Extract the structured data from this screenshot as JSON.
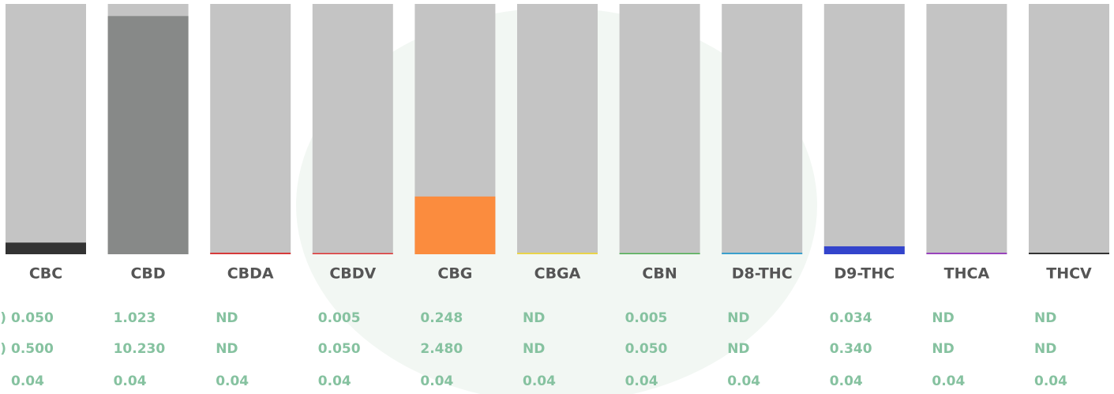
{
  "chart_data": {
    "type": "bar",
    "categories": [
      "CBC",
      "CBD",
      "CBDA",
      "CBDV",
      "CBG",
      "CBGA",
      "CBN",
      "D8-THC",
      "D9-THC",
      "THCA",
      "THCV"
    ],
    "values": [
      0.05,
      1.023,
      null,
      0.005,
      0.248,
      null,
      0.005,
      null,
      0.034,
      null,
      null
    ],
    "value_labels": [
      "0.050",
      "1.023",
      "ND",
      "0.005",
      "0.248",
      "ND",
      "0.005",
      "ND",
      "0.034",
      "ND",
      "ND"
    ],
    "colors": [
      "#333333",
      "#878988",
      "#d63a3a",
      "#e03030",
      "#fb8c3e",
      "#e8d44a",
      "#4caf50",
      "#3aa0cc",
      "#3344cc",
      "#9944bb",
      "#333333"
    ],
    "background_color": "#c4c4c4",
    "row_label": ")",
    "ylim": [
      0,
      1.075
    ]
  },
  "table": {
    "rows": [
      {
        "label": "g)",
        "cells": [
          "0.500",
          "10.230",
          "ND",
          "0.050",
          "2.480",
          "ND",
          "0.050",
          "ND",
          "0.340",
          "ND",
          "ND"
        ]
      },
      {
        "cells": [
          "0.04",
          "0.04",
          "0.04",
          "0.04",
          "0.04",
          "0.04",
          "0.04",
          "0.04",
          "0.04",
          "0.04",
          "0.04"
        ]
      }
    ]
  }
}
